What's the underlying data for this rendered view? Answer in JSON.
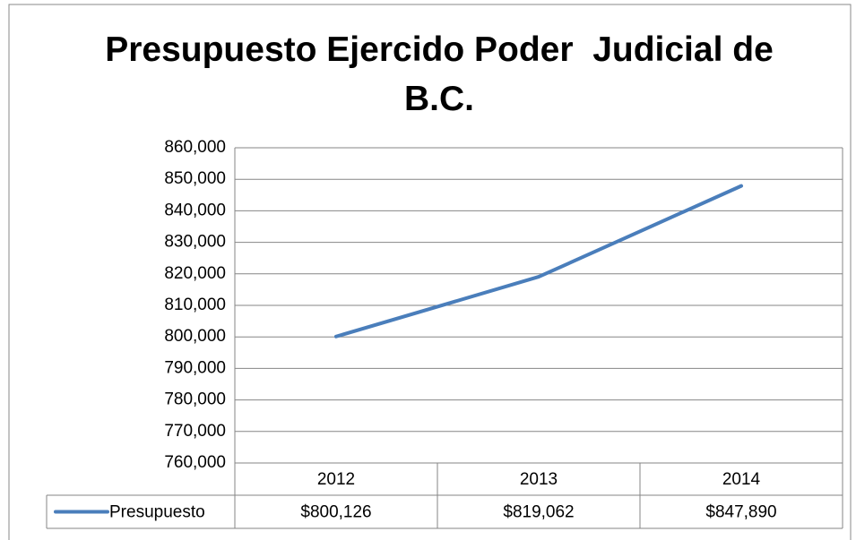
{
  "chart_data": {
    "type": "line",
    "title": "Presupuesto Ejercido Poder  Judicial de B.C.",
    "categories": [
      "2012",
      "2013",
      "2014"
    ],
    "series": [
      {
        "name": "Presupuesto",
        "color": "#4a7ebb",
        "values": [
          800126,
          819062,
          847890
        ],
        "value_labels": [
          "$800,126",
          "$819,062",
          "$847,890"
        ]
      }
    ],
    "ylim": [
      760000,
      860000
    ],
    "yticks": [
      {
        "value": 760000,
        "label": "760,000"
      },
      {
        "value": 770000,
        "label": "770,000"
      },
      {
        "value": 780000,
        "label": "780,000"
      },
      {
        "value": 790000,
        "label": "790,000"
      },
      {
        "value": 800000,
        "label": "800,000"
      },
      {
        "value": 810000,
        "label": "810,000"
      },
      {
        "value": 820000,
        "label": "820,000"
      },
      {
        "value": 830000,
        "label": "830,000"
      },
      {
        "value": 840000,
        "label": "840,000"
      },
      {
        "value": 850000,
        "label": "850,000"
      },
      {
        "value": 860000,
        "label": "860,000"
      }
    ],
    "grid": true
  }
}
